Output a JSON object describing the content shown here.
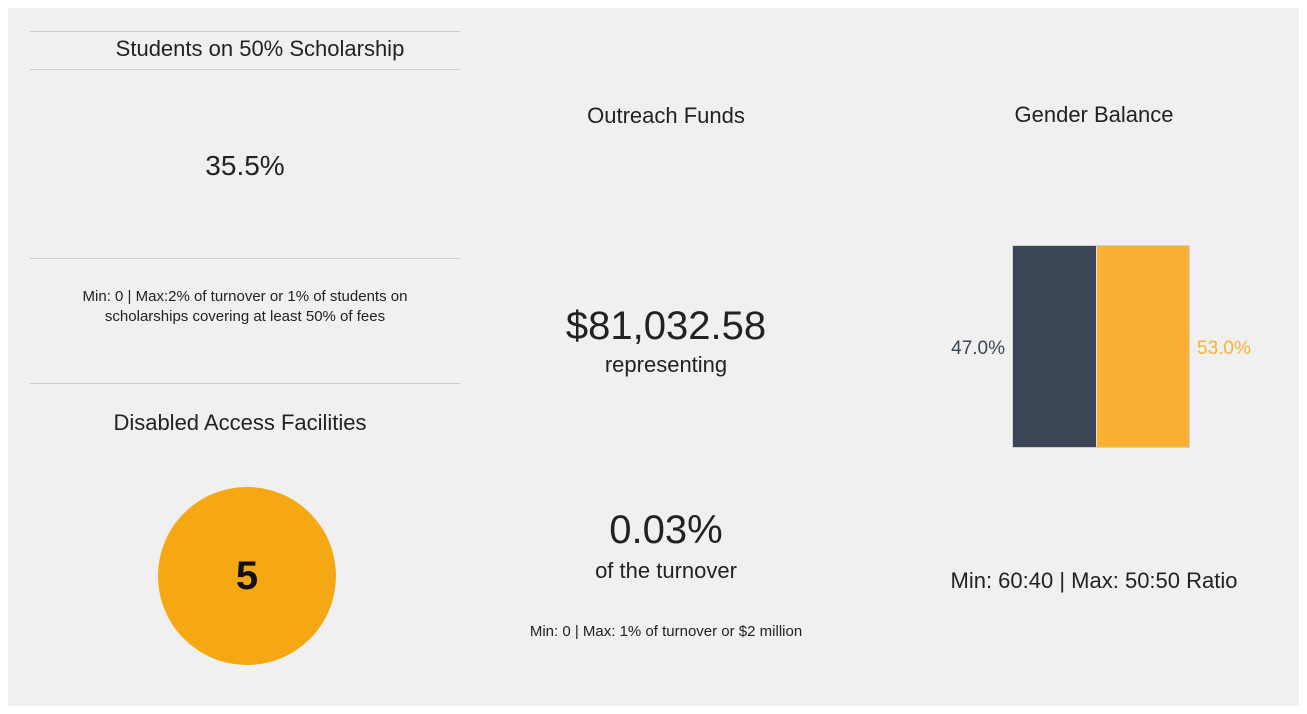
{
  "scholarship": {
    "title": "Students on 50% Scholarship",
    "value": "35.5%",
    "note": "Min: 0 | Max:2% of turnover or 1% of students on scholarships covering at least 50% of fees"
  },
  "disabled_access": {
    "title": "Disabled Access Facilities",
    "value": "5"
  },
  "outreach": {
    "title": "Outreach Funds",
    "amount": "$81,032.58",
    "amount_caption": "representing",
    "share": "0.03%",
    "share_caption": "of the turnover",
    "note": "Min: 0 | Max: 1% of turnover or $2 million"
  },
  "gender": {
    "title": "Gender Balance",
    "values": [
      47.0,
      53.0
    ],
    "value_labels": [
      "47.0%",
      "53.0%"
    ],
    "colors": [
      "#3b4556",
      "#fbb034"
    ],
    "note": "Min: 60:40 | Max: 50:50 Ratio"
  }
}
